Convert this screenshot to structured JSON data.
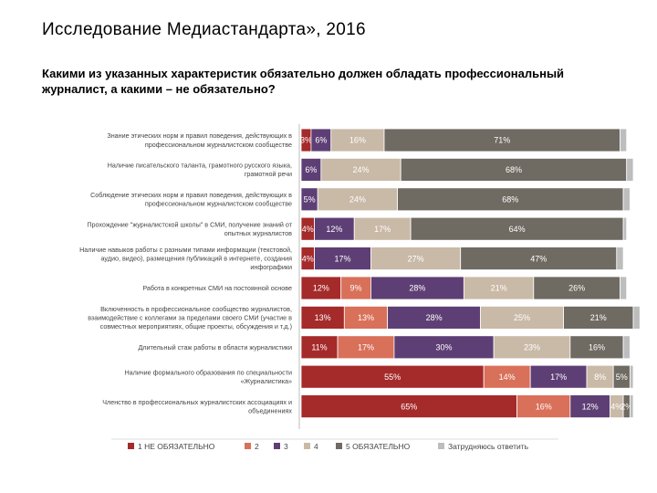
{
  "slide": {
    "title": "Исследование Медиастандарта», 2016",
    "question": "Какими из указанных характеристик обязательно должен обладать профессиональный журналист, а какими – не обязательно?"
  },
  "chart_data": {
    "type": "bar",
    "orientation": "horizontal",
    "stacked": true,
    "percent": true,
    "xlim": [
      0,
      100
    ],
    "legend_position": "bottom",
    "categories": [
      [
        "Знание этических норм и правил поведения, действующих в",
        "профессиональном журналистском сообществе"
      ],
      [
        "Наличие писательского таланта, грамотного русского языка,",
        "грамотной речи"
      ],
      [
        "Соблюдение этических норм и правил поведения, действующих в",
        "профессиональном журналистском сообществе"
      ],
      [
        "Прохождение \"журналистской школы\" в СМИ, получение знаний от",
        "опытных журналистов"
      ],
      [
        "Наличие навыков работы с разными типами информации (текстовой,",
        "аудио, видео), размещения публикаций в интернете, создания",
        "инфографики"
      ],
      [
        "Работа в конкретных СМИ на постоянной основе"
      ],
      [
        "Включенность в профессиональное сообщество журналистов,",
        "взаимодействие с коллегами за пределами своего СМИ (участие в",
        "совместных мероприятиях, общие проекты, обсуждения и т.д.)"
      ],
      [
        "Длительный стаж работы в области журналистики"
      ],
      [
        "Наличие формального образования по специальности",
        "«Журналистика»"
      ],
      [
        "Членство в профессиональных журналистских ассоциациях и",
        "объединениях"
      ]
    ],
    "series": [
      {
        "name": "1 НЕ ОБЯЗАТЕЛЬНО",
        "color": "#a52a2a",
        "text_color": "#ffffff",
        "values": [
          3,
          0,
          0,
          4,
          4,
          12,
          13,
          11,
          55,
          65
        ]
      },
      {
        "name": "2",
        "color": "#d9705a",
        "text_color": "#ffffff",
        "values": [
          0,
          0,
          0,
          0,
          0,
          9,
          13,
          17,
          14,
          16
        ]
      },
      {
        "name": "3",
        "color": "#5e3f75",
        "text_color": "#ffffff",
        "values": [
          6,
          6,
          5,
          12,
          17,
          28,
          28,
          30,
          17,
          12
        ]
      },
      {
        "name": "4",
        "color": "#c9b9a7",
        "text_color": "#ffffff",
        "values": [
          16,
          24,
          24,
          17,
          27,
          21,
          25,
          23,
          8,
          4
        ]
      },
      {
        "name": "5 ОБЯЗАТЕЛЬНО",
        "color": "#6f6a62",
        "text_color": "#ffffff",
        "values": [
          71,
          68,
          68,
          64,
          47,
          26,
          21,
          16,
          5,
          2
        ]
      },
      {
        "name": "Затрудняюсь ответить",
        "color": "#bdbdbd",
        "text_color": "#ffffff",
        "values": [
          2,
          2,
          2,
          1,
          2,
          2,
          2,
          2,
          1,
          1
        ]
      }
    ],
    "segment_labels": [
      [
        "3%",
        "",
        "6%",
        "16%",
        "71%",
        ""
      ],
      [
        "",
        "",
        "6%",
        "24%",
        "68%",
        ""
      ],
      [
        "",
        "",
        "5%",
        "24%",
        "68%",
        ""
      ],
      [
        "4%",
        "",
        "12%",
        "17%",
        "64%",
        ""
      ],
      [
        "4%",
        "",
        "17%",
        "27%",
        "47%",
        ""
      ],
      [
        "12%",
        "9%",
        "28%",
        "21%",
        "26%",
        ""
      ],
      [
        "13%",
        "13%",
        "28%",
        "25%",
        "21%",
        ""
      ],
      [
        "11%",
        "17%",
        "30%",
        "23%",
        "16%",
        ""
      ],
      [
        "55%",
        "14%",
        "17%",
        "8%",
        "5%",
        ""
      ],
      [
        "65%",
        "16%",
        "12%",
        "4%",
        "2%",
        ""
      ]
    ]
  }
}
